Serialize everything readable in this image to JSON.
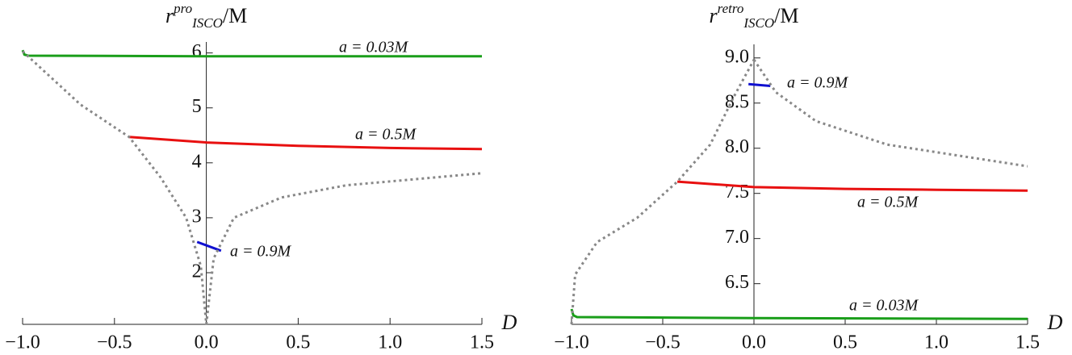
{
  "chart_data": [
    {
      "type": "line",
      "ylabel": {
        "base": "r",
        "sup": "pro",
        "sub": "ISCO",
        "tail": "/M"
      },
      "xlabel": "D",
      "xlim": [
        -1.0,
        1.5
      ],
      "ylim": [
        1.06,
        6.2
      ],
      "xticks": [
        {
          "value": -1,
          "label": "−1.0"
        },
        {
          "value": -0.5,
          "label": "−0.5"
        },
        {
          "value": 0,
          "label": "0.0"
        },
        0.5,
        {
          "value": 1,
          "label": "1.0"
        },
        1.5
      ],
      "yticks": [
        2,
        3,
        4,
        5,
        6
      ],
      "series": [
        {
          "name": "a = 0.03M",
          "color": "#1a9e1a",
          "x": [
            -1.0,
            -0.99,
            -0.97,
            0,
            1.5
          ],
          "values": [
            6.05,
            5.97,
            5.95,
            5.94,
            5.94
          ]
        },
        {
          "name": "a = 0.5M",
          "color": "#e81010",
          "x": [
            -0.42,
            0,
            0.5,
            1.0,
            1.5
          ],
          "values": [
            4.47,
            4.37,
            4.31,
            4.27,
            4.25
          ]
        },
        {
          "name": "a = 0.9M",
          "color": "#1010d0",
          "x": [
            -0.05,
            0.08
          ],
          "values": [
            2.56,
            2.4
          ]
        },
        {
          "color": "#888888",
          "dashed": true,
          "x": [
            -1.0,
            -0.685,
            -0.42,
            -0.25,
            -0.11,
            -0.03,
            0,
            null,
            0,
            0.04,
            0.15,
            0.41,
            0.76,
            1.5
          ],
          "values": [
            6.03,
            5.06,
            4.47,
            3.74,
            3.0,
            2.12,
            1.06,
            null,
            1.06,
            2.26,
            3.0,
            3.37,
            3.59,
            3.81
          ]
        }
      ]
    },
    {
      "type": "line",
      "ylabel": {
        "base": "r",
        "sup": "retro",
        "sub": "ISCO",
        "tail": "/M"
      },
      "xlabel": "D",
      "xlim": [
        -1.0,
        1.5
      ],
      "ylim": [
        6.05,
        9.15
      ],
      "xticks": [
        {
          "value": -1,
          "label": "−1.0"
        },
        {
          "value": -0.5,
          "label": "−0.5"
        },
        {
          "value": 0,
          "label": "0.0"
        },
        0.5,
        {
          "value": 1,
          "label": "1.0"
        },
        1.5
      ],
      "yticks": [
        6.5,
        {
          "value": 7,
          "label": "7.0"
        },
        7.5,
        {
          "value": 8,
          "label": "8.0"
        },
        8.5,
        {
          "value": 9,
          "label": "9.0"
        }
      ],
      "series": [
        {
          "name": "a = 0.9M",
          "color": "#1010d0",
          "x": [
            -0.03,
            0.09
          ],
          "values": [
            8.71,
            8.69
          ]
        },
        {
          "name": "a = 0.5M",
          "color": "#e81010",
          "x": [
            -0.42,
            0,
            0.5,
            1.0,
            1.5
          ],
          "values": [
            7.63,
            7.57,
            7.55,
            7.54,
            7.53
          ]
        },
        {
          "name": "a = 0.03M",
          "color": "#1a9e1a",
          "x": [
            -1.0,
            -0.99,
            -0.97,
            0,
            1.5
          ],
          "values": [
            6.22,
            6.15,
            6.13,
            6.12,
            6.11
          ]
        },
        {
          "color": "#888888",
          "dashed": true,
          "x": [
            -1.0,
            -0.98,
            -0.86,
            -0.64,
            -0.42,
            -0.24,
            -0.11,
            0,
            null,
            0,
            0.12,
            0.34,
            0.73,
            1.5
          ],
          "values": [
            6.05,
            6.6,
            6.96,
            7.23,
            7.63,
            8.04,
            8.57,
            8.98,
            null,
            8.98,
            8.62,
            8.3,
            8.04,
            7.8
          ]
        }
      ]
    }
  ]
}
